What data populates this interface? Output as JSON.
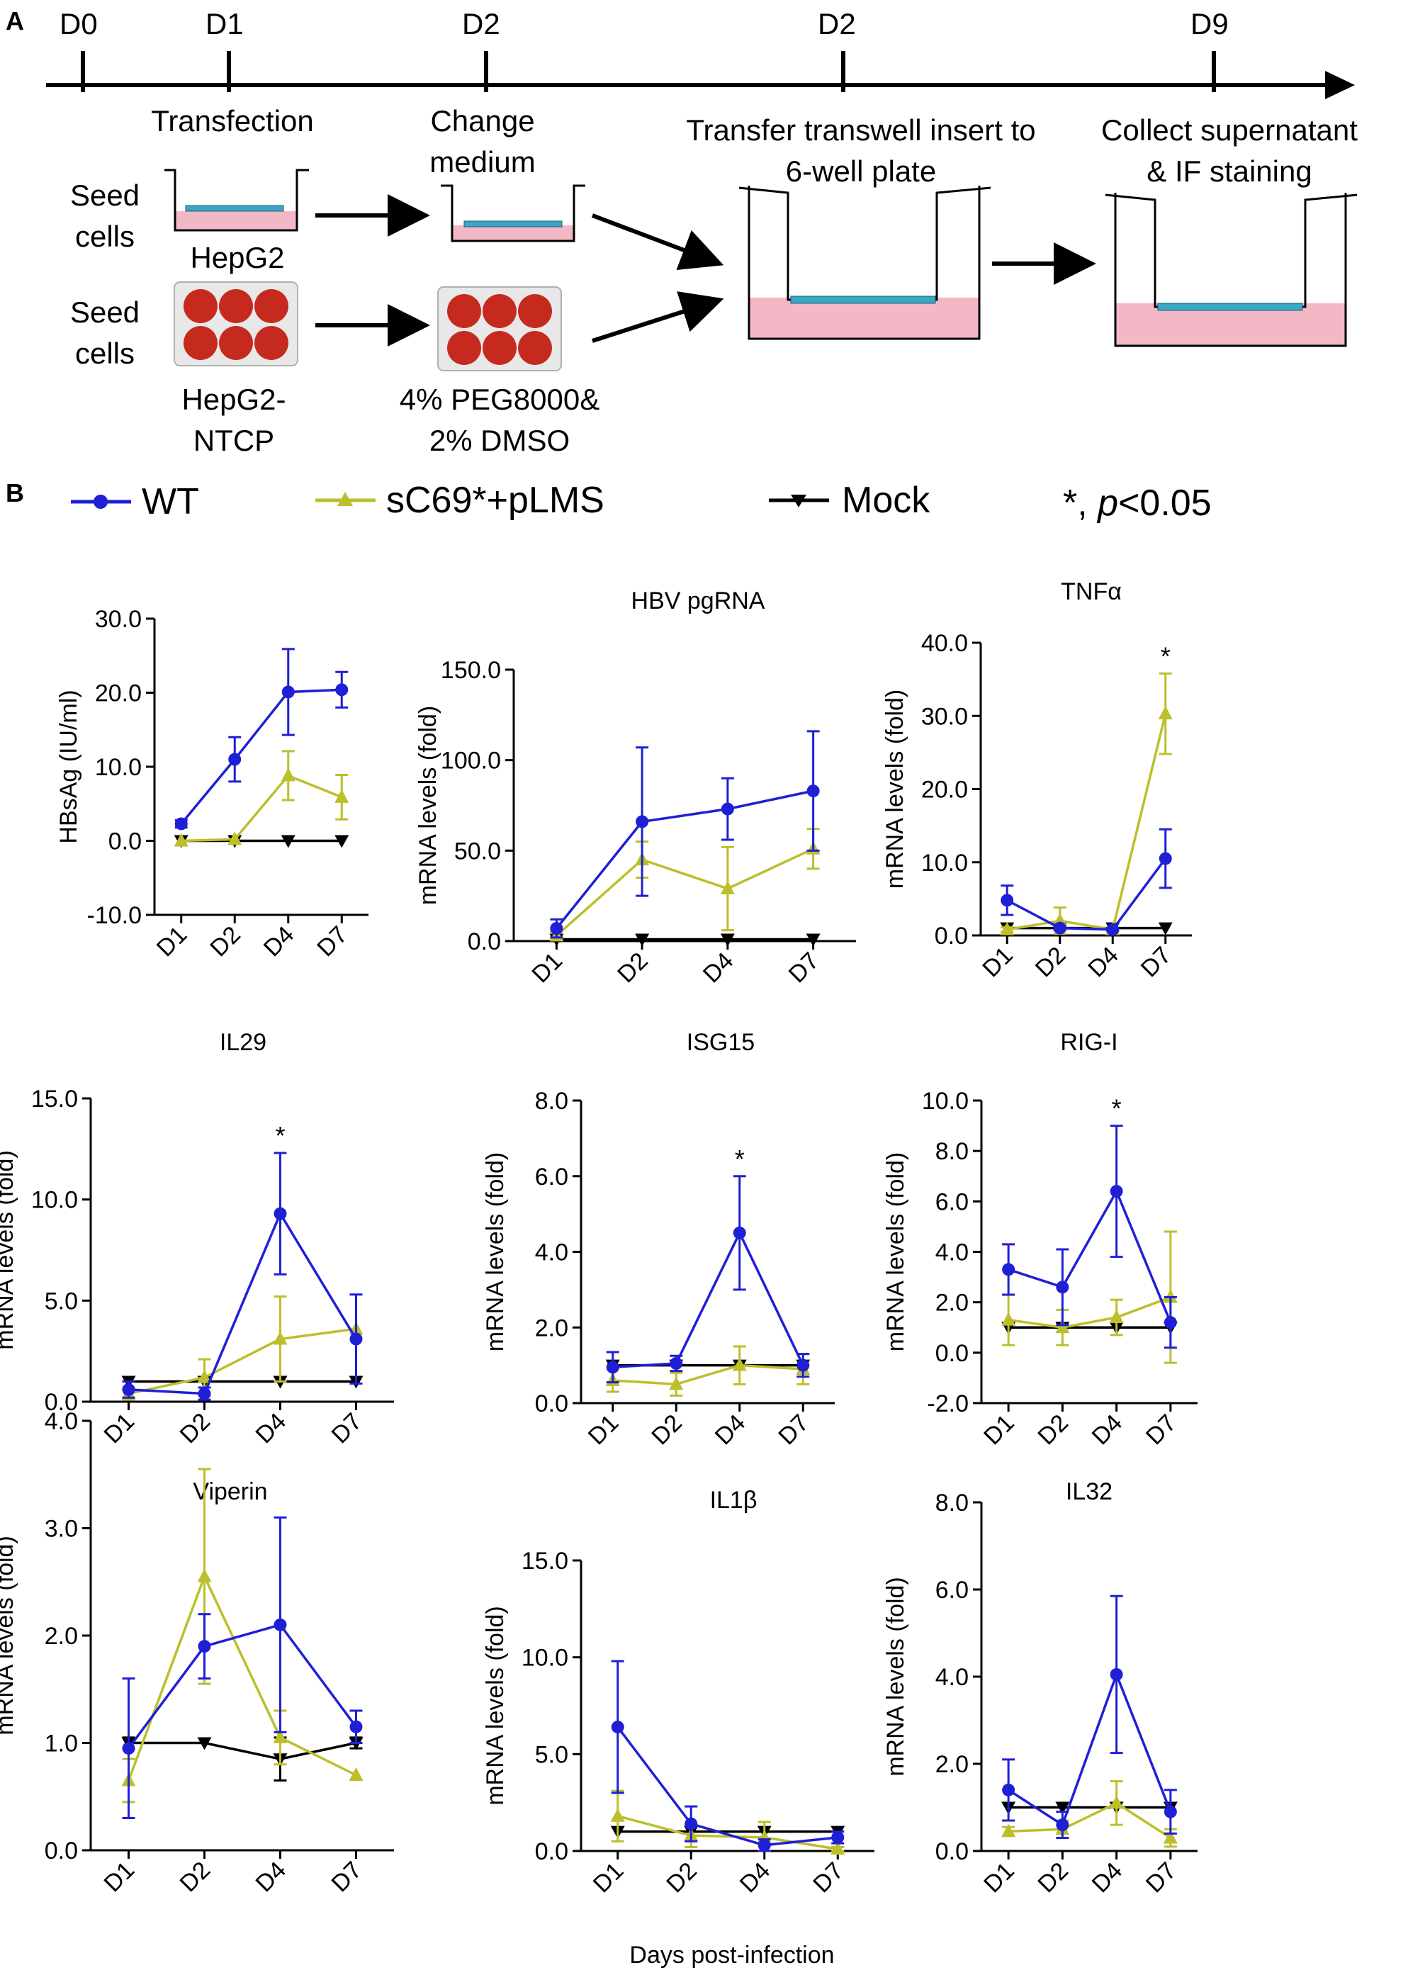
{
  "colors": {
    "wt": "#1f1fd6",
    "sc69": "#bcbf2a",
    "mock": "#000000",
    "pink": "#f3b8c6",
    "cell": "#3aa6c6",
    "red": "#c62a1e"
  },
  "panelA": {
    "label": "A",
    "timeline": {
      "days": [
        "D0",
        "D1",
        "D2",
        "D2",
        "D9"
      ]
    },
    "steps": {
      "transfection": "Transfection",
      "change1": "Change",
      "change2": "medium",
      "transfer1": "Transfer  transwell  insert to",
      "transfer2": "6-well plate",
      "collect1": "Collect supernatant",
      "collect2": "& IF staining"
    },
    "rows": {
      "seed1a": "Seed",
      "seed1b": "cells",
      "seed2a": "Seed",
      "seed2b": "cells",
      "hepg2": "HepG2",
      "ntcp1": "HepG2-",
      "ntcp2": "NTCP",
      "peg1": "4% PEG8000&",
      "peg2": "2% DMSO"
    }
  },
  "panelB": {
    "label": "B",
    "legend": {
      "wt": "WT",
      "sc69": "sC69*+pLMS",
      "mock": "Mock",
      "sig_prefix": "*, ",
      "sig_p": "p",
      "sig_rest": "<0.05"
    },
    "xlabel": "Days post-infection"
  },
  "chart_data": [
    {
      "type": "line",
      "title": "",
      "ylabel": "HBsAg (IU/ml)",
      "categories": [
        "D1",
        "D2",
        "D4",
        "D7"
      ],
      "ylim": [
        -10,
        30
      ],
      "yticks": [
        -10,
        0,
        10,
        20,
        30
      ],
      "tick_labels": [
        "-10.0",
        "0.0",
        "10.0",
        "20.0",
        "30.0"
      ],
      "series": [
        {
          "name": "WT",
          "values": [
            2.3,
            11,
            20.1,
            20.4
          ],
          "err": [
            0.5,
            3,
            5.8,
            2.4
          ]
        },
        {
          "name": "sC69*+pLMS",
          "values": [
            0,
            0.2,
            8.8,
            5.9
          ],
          "err": [
            0,
            0,
            3.3,
            3
          ]
        },
        {
          "name": "Mock",
          "values": [
            0,
            0,
            0,
            0
          ],
          "err": [
            0,
            0,
            0,
            0
          ]
        }
      ],
      "stars": []
    },
    {
      "type": "line",
      "title": "HBV pgRNA",
      "ylabel": "mRNA levels (fold)",
      "categories": [
        "D1",
        "D2",
        "D4",
        "D7"
      ],
      "ylim": [
        0,
        150
      ],
      "yticks": [
        0,
        50,
        100,
        150
      ],
      "tick_labels": [
        "0.0",
        "50.0",
        "100.0",
        "150.0"
      ],
      "series": [
        {
          "name": "WT",
          "values": [
            7,
            66,
            73,
            83
          ],
          "err": [
            5,
            41,
            17,
            33
          ]
        },
        {
          "name": "sC69*+pLMS",
          "values": [
            3,
            45,
            29,
            51
          ],
          "err": [
            2,
            10,
            23,
            11
          ]
        },
        {
          "name": "Mock",
          "values": [
            1,
            1,
            1,
            1
          ],
          "err": [
            0,
            0,
            0,
            0
          ]
        }
      ],
      "stars": []
    },
    {
      "type": "line",
      "title": "TNFα",
      "ylabel": "mRNA levels (fold)",
      "categories": [
        "D1",
        "D2",
        "D4",
        "D7"
      ],
      "ylim": [
        0,
        40
      ],
      "yticks": [
        0,
        10,
        20,
        30,
        40
      ],
      "tick_labels": [
        "0.0",
        "10.0",
        "20.0",
        "30.0",
        "40.0"
      ],
      "series": [
        {
          "name": "WT",
          "values": [
            4.8,
            1,
            0.8,
            10.5
          ],
          "err": [
            2,
            0.3,
            0.2,
            4
          ]
        },
        {
          "name": "sC69*+pLMS",
          "values": [
            0.8,
            2,
            0.8,
            30.3
          ],
          "err": [
            0.3,
            1.8,
            0.2,
            5.5
          ]
        },
        {
          "name": "Mock",
          "values": [
            1,
            1,
            1,
            1
          ],
          "err": [
            0,
            0,
            0,
            0
          ]
        }
      ],
      "stars": [
        3
      ]
    },
    {
      "type": "line",
      "title": "IL29",
      "ylabel": "mRNA levels (fold)",
      "categories": [
        "D1",
        "D2",
        "D4",
        "D7"
      ],
      "ylim": [
        0,
        15
      ],
      "yticks": [
        0,
        5,
        10,
        15
      ],
      "tick_labels": [
        "0.0",
        "5.0",
        "10.0",
        "15.0"
      ],
      "series": [
        {
          "name": "WT",
          "values": [
            0.6,
            0.4,
            9.3,
            3.1
          ],
          "err": [
            0.4,
            0.3,
            3,
            2.2
          ]
        },
        {
          "name": "sC69*+pLMS",
          "values": [
            0.4,
            1.2,
            3.1,
            3.6
          ],
          "err": [
            0.3,
            0.9,
            2.1,
            0
          ]
        },
        {
          "name": "Mock",
          "values": [
            1,
            1,
            1,
            1
          ],
          "err": [
            0,
            0,
            0,
            0
          ]
        }
      ],
      "stars": [
        2
      ]
    },
    {
      "type": "line",
      "title": "ISG15",
      "ylabel": "mRNA levels (fold)",
      "categories": [
        "D1",
        "D2",
        "D4",
        "D7"
      ],
      "ylim": [
        0,
        8
      ],
      "yticks": [
        0,
        2,
        4,
        6,
        8
      ],
      "tick_labels": [
        "0.0",
        "2.0",
        "4.0",
        "6.0",
        "8.0"
      ],
      "series": [
        {
          "name": "WT",
          "values": [
            0.95,
            1.05,
            4.5,
            1
          ],
          "err": [
            0.4,
            0.2,
            1.5,
            0.3
          ]
        },
        {
          "name": "sC69*+pLMS",
          "values": [
            0.6,
            0.5,
            1,
            0.9
          ],
          "err": [
            0.3,
            0.3,
            0.5,
            0.4
          ]
        },
        {
          "name": "Mock",
          "values": [
            1,
            1,
            1,
            1
          ],
          "err": [
            0,
            0,
            0,
            0
          ]
        }
      ],
      "stars": [
        2
      ]
    },
    {
      "type": "line",
      "title": "RIG-I",
      "ylabel": "mRNA levels (fold)",
      "categories": [
        "D1",
        "D2",
        "D4",
        "D7"
      ],
      "ylim": [
        -2,
        10
      ],
      "yticks": [
        -2,
        0,
        2,
        4,
        6,
        8,
        10
      ],
      "tick_labels": [
        "-2.0",
        "0.0",
        "2.0",
        "4.0",
        "6.0",
        "8.0",
        "10.0"
      ],
      "series": [
        {
          "name": "WT",
          "values": [
            3.3,
            2.6,
            6.4,
            1.2
          ],
          "err": [
            1,
            1.5,
            2.6,
            1
          ]
        },
        {
          "name": "sC69*+pLMS",
          "values": [
            1.3,
            1,
            1.4,
            2.2
          ],
          "err": [
            1,
            0.7,
            0.7,
            2.6
          ]
        },
        {
          "name": "Mock",
          "values": [
            1,
            1,
            1,
            1
          ],
          "err": [
            0,
            0,
            0,
            0
          ]
        }
      ],
      "stars": [
        2
      ]
    },
    {
      "type": "line",
      "title": "Viperin",
      "ylabel": "mRNA levels (fold)",
      "categories": [
        "D1",
        "D2",
        "D4",
        "D7"
      ],
      "ylim": [
        0,
        4
      ],
      "yticks": [
        0,
        1,
        2,
        3,
        4
      ],
      "tick_labels": [
        "0.0",
        "1.0",
        "2.0",
        "3.0",
        "4.0"
      ],
      "series": [
        {
          "name": "WT",
          "values": [
            0.95,
            1.9,
            2.1,
            1.15
          ],
          "err": [
            0.65,
            0.3,
            1,
            0.15
          ]
        },
        {
          "name": "sC69*+pLMS",
          "values": [
            0.65,
            2.55,
            1.05,
            0.7
          ],
          "err": [
            0.2,
            1,
            0.25,
            0
          ]
        },
        {
          "name": "Mock",
          "values": [
            1,
            1,
            0.85,
            1
          ],
          "err": [
            0.05,
            0,
            0.2,
            0.05
          ]
        }
      ],
      "stars": []
    },
    {
      "type": "line",
      "title": "IL1β",
      "ylabel": "mRNA levels (fold)",
      "categories": [
        "D1",
        "D2",
        "D4",
        "D7"
      ],
      "ylim": [
        0,
        15
      ],
      "yticks": [
        0,
        5,
        10,
        15
      ],
      "tick_labels": [
        "0.0",
        "5.0",
        "10.0",
        "15.0"
      ],
      "series": [
        {
          "name": "WT",
          "values": [
            6.4,
            1.4,
            0.3,
            0.7
          ],
          "err": [
            3.4,
            0.9,
            0.3,
            0.3
          ]
        },
        {
          "name": "sC69*+pLMS",
          "values": [
            1.8,
            0.8,
            0.7,
            0.1
          ],
          "err": [
            1.3,
            0.6,
            0.8,
            0.1
          ]
        },
        {
          "name": "Mock",
          "values": [
            1,
            1,
            1,
            1
          ],
          "err": [
            0,
            0,
            0,
            0
          ]
        }
      ],
      "stars": []
    },
    {
      "type": "line",
      "title": "IL32",
      "ylabel": "mRNA levels (fold)",
      "categories": [
        "D1",
        "D2",
        "D4",
        "D7"
      ],
      "ylim": [
        0,
        8
      ],
      "yticks": [
        0,
        2,
        4,
        6,
        8
      ],
      "tick_labels": [
        "0.0",
        "2.0",
        "4.0",
        "6.0",
        "8.0"
      ],
      "series": [
        {
          "name": "WT",
          "values": [
            1.4,
            0.6,
            4.05,
            0.9
          ],
          "err": [
            0.7,
            0.3,
            1.8,
            0.5
          ]
        },
        {
          "name": "sC69*+pLMS",
          "values": [
            0.45,
            0.5,
            1.1,
            0.3
          ],
          "err": [
            0.1,
            0.2,
            0.5,
            0.2
          ]
        },
        {
          "name": "Mock",
          "values": [
            1,
            1,
            1,
            1
          ],
          "err": [
            0,
            0,
            0,
            0
          ]
        }
      ],
      "stars": []
    }
  ]
}
